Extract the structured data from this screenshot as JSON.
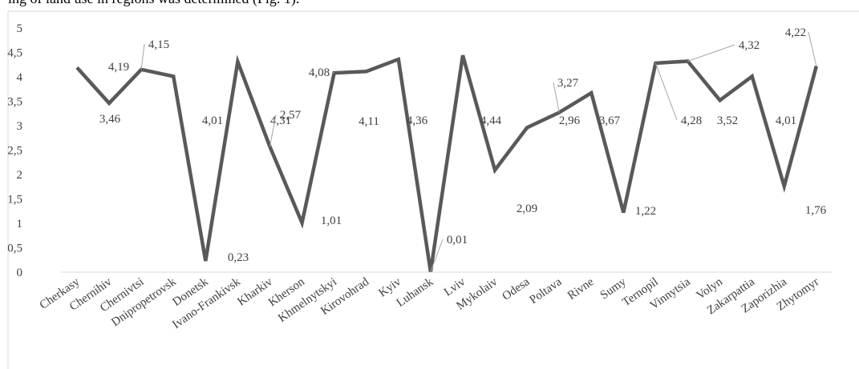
{
  "page_text": "ing of land use in regions was determined (Fig. 1).",
  "chart_data": {
    "type": "line",
    "categories": [
      "Cherkasy",
      "Chernihiv",
      "Chernivtsi",
      "Dnipropetrovsk",
      "Donetsk",
      "Ivano-Frankivsk",
      "Kharkiv",
      "Kherson",
      "Khmelnytskyi",
      "Kirovohrad",
      "Kyiv",
      "Luhansk",
      "Lviv",
      "Mykolaiv",
      "Odesa",
      "Poltava",
      "Rivne",
      "Sumy",
      "Ternopil",
      "Vinnytsia",
      "Volyn",
      "Zakarpattia",
      "Zaporizhia",
      "Zhytomyr"
    ],
    "values": [
      4.19,
      3.46,
      4.15,
      4.01,
      0.23,
      4.31,
      2.57,
      1.01,
      4.08,
      4.11,
      4.36,
      0.01,
      4.44,
      2.09,
      2.96,
      3.27,
      3.67,
      1.22,
      4.28,
      4.32,
      3.52,
      4.01,
      1.76,
      4.22
    ],
    "value_labels": [
      "4,19",
      "3,46",
      "4,15",
      "4,01",
      "0,23",
      "4,31",
      "2,57",
      "1,01",
      "4,08",
      "4,11",
      "4,36",
      "0,01",
      "4,44",
      "2,09",
      "2,96",
      "3,27",
      "3,67",
      "1,22",
      "4,28",
      "4,32",
      "3,52",
      "4,01",
      "1,76",
      "4,22"
    ],
    "color": "#595959",
    "ylim": [
      0,
      5
    ],
    "yticks": [
      0,
      {
        "value": 0.5,
        "label": "0,5"
      },
      1,
      {
        "value": 1.5,
        "label": "1,5"
      },
      2,
      {
        "value": 2.5,
        "label": "2,5"
      },
      3,
      {
        "value": 3.5,
        "label": "3,5"
      },
      4,
      {
        "value": 4.5,
        "label": "4,5"
      },
      5
    ],
    "grid": false
  }
}
